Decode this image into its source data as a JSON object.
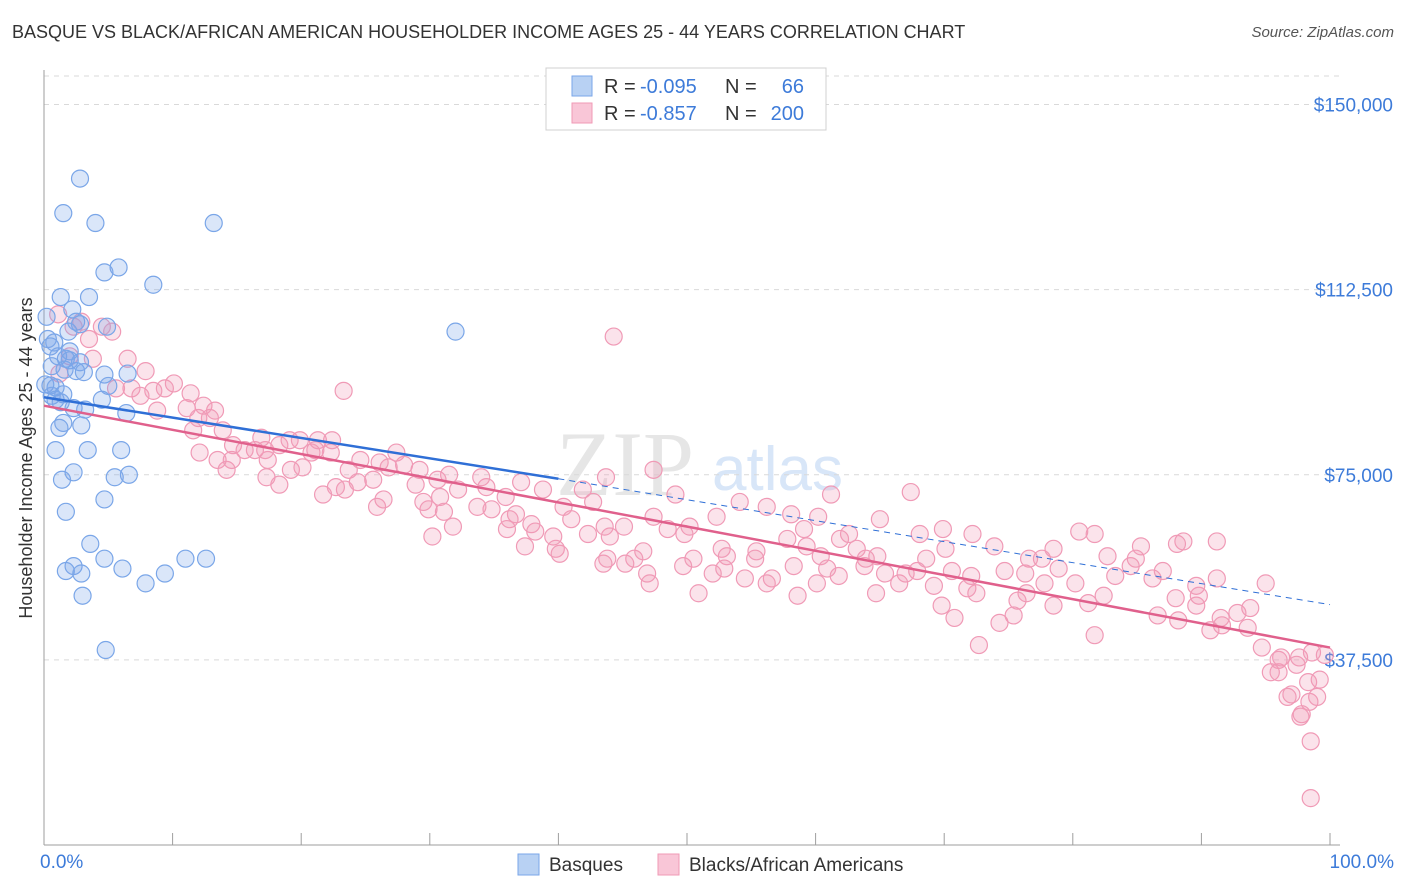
{
  "title": "BASQUE VS BLACK/AFRICAN AMERICAN HOUSEHOLDER INCOME AGES 25 - 44 YEARS CORRELATION CHART",
  "source": "Source: ZipAtlas.com",
  "watermark": {
    "zip": "ZIP",
    "atlas": "atlas"
  },
  "colors": {
    "blue": "#7aa6e8",
    "blue_line": "#2f6fd6",
    "pink": "#f09ab6",
    "pink_line": "#e0608c",
    "axis_text": "#3d7bd9"
  },
  "legend": {
    "r_label": "R =",
    "n_label": "N =",
    "rows": [
      {
        "r": "-0.095",
        "n": "66"
      },
      {
        "r": "-0.857",
        "n": "200"
      }
    ]
  },
  "chart_data": {
    "type": "scatter",
    "ylabel": "Householder Income Ages 25 - 44 years",
    "xlim": [
      0,
      100
    ],
    "ylim": [
      0,
      157000
    ],
    "x_tick_labels": [
      "0.0%",
      "100.0%"
    ],
    "y_ticks": [
      37500,
      75000,
      112500,
      150000
    ],
    "y_tick_labels": [
      "$37,500",
      "$75,000",
      "$112,500",
      "$150,000"
    ],
    "grid": true,
    "series": [
      {
        "name": "Basques",
        "color": "#7aa6e8",
        "trend": {
          "x0": 0,
          "y0": 90700,
          "x1": 40,
          "y1": 74200,
          "dashed_to_x": 100,
          "dashed_to_y": 48700
        },
        "points": [
          [
            2.8,
            135000
          ],
          [
            1.5,
            128000
          ],
          [
            4.0,
            126000
          ],
          [
            13.2,
            126000
          ],
          [
            5.8,
            117000
          ],
          [
            4.7,
            116000
          ],
          [
            8.5,
            113500
          ],
          [
            1.3,
            111000
          ],
          [
            3.5,
            111000
          ],
          [
            2.2,
            108500
          ],
          [
            0.2,
            107000
          ],
          [
            2.5,
            106000
          ],
          [
            2.8,
            105500
          ],
          [
            4.9,
            105000
          ],
          [
            1.9,
            104000
          ],
          [
            0.3,
            102500
          ],
          [
            0.8,
            101800
          ],
          [
            0.5,
            101000
          ],
          [
            2.0,
            100000
          ],
          [
            1.1,
            99000
          ],
          [
            1.7,
            98500
          ],
          [
            2.0,
            98200
          ],
          [
            2.8,
            97800
          ],
          [
            0.6,
            97000
          ],
          [
            1.6,
            96300
          ],
          [
            2.5,
            96000
          ],
          [
            3.1,
            95800
          ],
          [
            4.7,
            95300
          ],
          [
            6.5,
            95500
          ],
          [
            0.1,
            93300
          ],
          [
            0.5,
            93100
          ],
          [
            0.9,
            92700
          ],
          [
            5.0,
            93000
          ],
          [
            1.5,
            91300
          ],
          [
            0.6,
            91000
          ],
          [
            0.9,
            90200
          ],
          [
            4.5,
            90200
          ],
          [
            1.3,
            89700
          ],
          [
            2.3,
            88500
          ],
          [
            3.2,
            88200
          ],
          [
            6.4,
            87500
          ],
          [
            1.5,
            85500
          ],
          [
            2.9,
            85000
          ],
          [
            1.2,
            84500
          ],
          [
            0.9,
            80000
          ],
          [
            3.4,
            80000
          ],
          [
            6.0,
            80000
          ],
          [
            6.6,
            75000
          ],
          [
            2.3,
            75500
          ],
          [
            5.5,
            74500
          ],
          [
            1.4,
            74000
          ],
          [
            4.7,
            70000
          ],
          [
            1.7,
            67500
          ],
          [
            3.6,
            61000
          ],
          [
            4.7,
            58000
          ],
          [
            11.0,
            58000
          ],
          [
            12.6,
            58000
          ],
          [
            2.3,
            56500
          ],
          [
            6.1,
            56000
          ],
          [
            1.7,
            55500
          ],
          [
            2.9,
            55000
          ],
          [
            9.4,
            55000
          ],
          [
            7.9,
            53000
          ],
          [
            3.0,
            50500
          ],
          [
            4.8,
            39500
          ],
          [
            32.0,
            104000
          ]
        ]
      },
      {
        "name": "Blacks/African Americans",
        "color": "#f09ab6",
        "trend": {
          "x0": 0,
          "y0": 89000,
          "x1": 100,
          "y1": 40000
        },
        "points": [
          [
            1.1,
            107500
          ],
          [
            2.9,
            106000
          ],
          [
            2.3,
            105000
          ],
          [
            4.5,
            105000
          ],
          [
            3.5,
            102500
          ],
          [
            5.3,
            104000
          ],
          [
            44.3,
            103000
          ],
          [
            2.0,
            99000
          ],
          [
            3.8,
            98500
          ],
          [
            6.5,
            98500
          ],
          [
            1.2,
            95500
          ],
          [
            7.9,
            96000
          ],
          [
            10.1,
            93500
          ],
          [
            5.6,
            92500
          ],
          [
            6.8,
            92500
          ],
          [
            8.5,
            92000
          ],
          [
            9.4,
            92500
          ],
          [
            11.4,
            91500
          ],
          [
            23.3,
            92000
          ],
          [
            7.5,
            91000
          ],
          [
            8.8,
            88000
          ],
          [
            11.1,
            88500
          ],
          [
            12.4,
            89000
          ],
          [
            13.3,
            88000
          ],
          [
            12.0,
            86500
          ],
          [
            12.9,
            86500
          ],
          [
            11.6,
            84000
          ],
          [
            13.9,
            84000
          ],
          [
            16.9,
            82500
          ],
          [
            19.1,
            82000
          ],
          [
            19.9,
            82000
          ],
          [
            21.3,
            82000
          ],
          [
            22.4,
            82000
          ],
          [
            12.1,
            79500
          ],
          [
            14.7,
            81000
          ],
          [
            15.6,
            80000
          ],
          [
            16.4,
            80000
          ],
          [
            17.2,
            80000
          ],
          [
            18.3,
            81000
          ],
          [
            21.1,
            80000
          ],
          [
            22.3,
            79500
          ],
          [
            27.4,
            79500
          ],
          [
            13.5,
            78000
          ],
          [
            14.6,
            78000
          ],
          [
            17.4,
            78000
          ],
          [
            20.8,
            79500
          ],
          [
            24.6,
            78000
          ],
          [
            26.1,
            77500
          ],
          [
            26.8,
            76500
          ],
          [
            28.0,
            77000
          ],
          [
            14.2,
            76000
          ],
          [
            17.3,
            74500
          ],
          [
            19.2,
            76000
          ],
          [
            20.1,
            76500
          ],
          [
            23.7,
            76000
          ],
          [
            29.2,
            76000
          ],
          [
            31.5,
            75000
          ],
          [
            34.0,
            74500
          ],
          [
            47.4,
            76000
          ],
          [
            18.3,
            73000
          ],
          [
            22.7,
            72500
          ],
          [
            23.4,
            72000
          ],
          [
            24.4,
            73500
          ],
          [
            25.6,
            74000
          ],
          [
            28.9,
            73000
          ],
          [
            30.6,
            74000
          ],
          [
            37.1,
            73500
          ],
          [
            38.8,
            72000
          ],
          [
            43.7,
            74500
          ],
          [
            21.7,
            71000
          ],
          [
            26.4,
            70000
          ],
          [
            29.5,
            69500
          ],
          [
            30.8,
            70500
          ],
          [
            32.2,
            72000
          ],
          [
            34.4,
            72500
          ],
          [
            35.9,
            70500
          ],
          [
            41.9,
            72000
          ],
          [
            49.1,
            71000
          ],
          [
            61.2,
            71000
          ],
          [
            67.4,
            71500
          ],
          [
            25.9,
            68500
          ],
          [
            29.9,
            68000
          ],
          [
            31.1,
            67500
          ],
          [
            33.7,
            68500
          ],
          [
            34.8,
            68000
          ],
          [
            36.7,
            67000
          ],
          [
            40.4,
            68500
          ],
          [
            42.7,
            69500
          ],
          [
            54.1,
            69500
          ],
          [
            56.2,
            68500
          ],
          [
            36.2,
            66000
          ],
          [
            37.9,
            65000
          ],
          [
            41.0,
            66000
          ],
          [
            47.4,
            66500
          ],
          [
            52.3,
            66500
          ],
          [
            58.1,
            67000
          ],
          [
            60.2,
            66500
          ],
          [
            65.0,
            66000
          ],
          [
            31.8,
            64500
          ],
          [
            36.0,
            64000
          ],
          [
            38.2,
            63500
          ],
          [
            43.6,
            64500
          ],
          [
            45.1,
            64500
          ],
          [
            48.5,
            64000
          ],
          [
            50.2,
            64500
          ],
          [
            59.1,
            64000
          ],
          [
            68.1,
            63000
          ],
          [
            30.2,
            62500
          ],
          [
            39.6,
            62500
          ],
          [
            42.3,
            63000
          ],
          [
            44.0,
            62500
          ],
          [
            49.8,
            63000
          ],
          [
            57.8,
            62000
          ],
          [
            61.9,
            62000
          ],
          [
            62.6,
            63000
          ],
          [
            69.9,
            64000
          ],
          [
            72.2,
            63000
          ],
          [
            80.5,
            63500
          ],
          [
            81.7,
            63000
          ],
          [
            37.4,
            60500
          ],
          [
            39.8,
            60000
          ],
          [
            46.6,
            59500
          ],
          [
            52.7,
            60000
          ],
          [
            55.4,
            59500
          ],
          [
            59.3,
            60500
          ],
          [
            63.2,
            60000
          ],
          [
            70.1,
            60000
          ],
          [
            73.9,
            60500
          ],
          [
            78.5,
            60000
          ],
          [
            85.3,
            60500
          ],
          [
            88.1,
            61000
          ],
          [
            88.6,
            61500
          ],
          [
            91.2,
            61500
          ],
          [
            40.1,
            59000
          ],
          [
            43.8,
            58000
          ],
          [
            45.9,
            58000
          ],
          [
            50.5,
            58000
          ],
          [
            53.1,
            58500
          ],
          [
            55.3,
            58000
          ],
          [
            60.4,
            58500
          ],
          [
            63.9,
            58000
          ],
          [
            64.8,
            58500
          ],
          [
            68.6,
            58000
          ],
          [
            76.6,
            58000
          ],
          [
            77.6,
            58000
          ],
          [
            82.7,
            58500
          ],
          [
            84.9,
            58000
          ],
          [
            43.5,
            57000
          ],
          [
            45.2,
            57000
          ],
          [
            49.7,
            56500
          ],
          [
            52.9,
            56000
          ],
          [
            58.3,
            56500
          ],
          [
            60.9,
            56000
          ],
          [
            63.8,
            56500
          ],
          [
            67.9,
            55500
          ],
          [
            70.6,
            55500
          ],
          [
            74.7,
            55500
          ],
          [
            78.9,
            56000
          ],
          [
            84.5,
            56500
          ],
          [
            87.0,
            55500
          ],
          [
            46.9,
            55000
          ],
          [
            52.0,
            55000
          ],
          [
            54.5,
            54000
          ],
          [
            56.6,
            54000
          ],
          [
            61.8,
            54500
          ],
          [
            65.4,
            55000
          ],
          [
            67.0,
            55000
          ],
          [
            72.1,
            54500
          ],
          [
            76.3,
            55000
          ],
          [
            83.3,
            54500
          ],
          [
            86.2,
            54000
          ],
          [
            91.2,
            54000
          ],
          [
            95.0,
            53000
          ],
          [
            47.1,
            53000
          ],
          [
            56.2,
            53000
          ],
          [
            60.1,
            53000
          ],
          [
            66.5,
            53000
          ],
          [
            69.2,
            52500
          ],
          [
            71.8,
            52000
          ],
          [
            77.8,
            53000
          ],
          [
            80.2,
            53000
          ],
          [
            89.6,
            52500
          ],
          [
            50.9,
            51000
          ],
          [
            58.6,
            50500
          ],
          [
            64.7,
            51000
          ],
          [
            72.5,
            51000
          ],
          [
            76.4,
            51000
          ],
          [
            82.4,
            50500
          ],
          [
            88.0,
            50000
          ],
          [
            89.8,
            50500
          ],
          [
            69.8,
            48500
          ],
          [
            75.7,
            49500
          ],
          [
            78.5,
            48500
          ],
          [
            81.2,
            49000
          ],
          [
            89.6,
            48500
          ],
          [
            93.8,
            48000
          ],
          [
            70.8,
            46000
          ],
          [
            75.4,
            46500
          ],
          [
            86.6,
            46500
          ],
          [
            88.2,
            45500
          ],
          [
            91.5,
            46000
          ],
          [
            92.8,
            47000
          ],
          [
            74.3,
            45000
          ],
          [
            91.6,
            44500
          ],
          [
            93.6,
            44000
          ],
          [
            90.7,
            43500
          ],
          [
            81.7,
            42500
          ],
          [
            72.7,
            40500
          ],
          [
            94.7,
            40000
          ],
          [
            96.0,
            37500
          ],
          [
            97.4,
            36500
          ],
          [
            95.4,
            35000
          ],
          [
            99.2,
            33500
          ],
          [
            98.3,
            33000
          ],
          [
            96.7,
            30000
          ],
          [
            97.0,
            30500
          ],
          [
            99.0,
            30000
          ],
          [
            98.6,
            39000
          ],
          [
            97.6,
            38000
          ],
          [
            96.2,
            38000
          ],
          [
            99.6,
            38500
          ],
          [
            96.0,
            35000
          ],
          [
            97.7,
            26000
          ],
          [
            97.8,
            26500
          ],
          [
            98.5,
            21000
          ],
          [
            98.4,
            29000
          ],
          [
            98.5,
            9500
          ]
        ]
      }
    ]
  }
}
